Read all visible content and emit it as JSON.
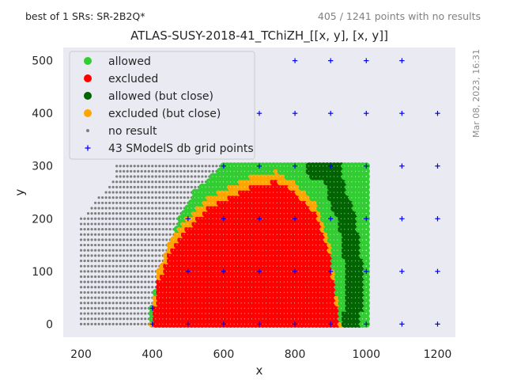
{
  "header": {
    "best_sr": "best of 1 SRs: SR-2B2Q*",
    "points_info": "405 / 1241 points with no results"
  },
  "timestamp": "Mar 08, 2023, 16:31",
  "colors": {
    "allowed": "#32cd32",
    "excluded": "#ff0000",
    "allowed_close": "#006400",
    "excluded_close": "#ffa500",
    "no_result": "#7f7f7f",
    "grid_points": "#0000ff",
    "plot_bg": "#eaeaf2"
  },
  "chart_data": {
    "type": "scatter",
    "title": "ATLAS-SUSY-2018-41_TChiZH_[[x, y], [x, y]]",
    "xlabel": "x",
    "ylabel": "y",
    "xlim": [
      150,
      1250
    ],
    "ylim": [
      -25,
      525
    ],
    "xticks": [
      200,
      400,
      600,
      800,
      1000,
      1200
    ],
    "yticks": [
      0,
      100,
      200,
      300,
      400,
      500
    ],
    "grid": false,
    "legend_position": "top-left",
    "legend": [
      {
        "label": "allowed",
        "key": "allowed",
        "marker": "circle"
      },
      {
        "label": "excluded",
        "key": "excluded",
        "marker": "circle"
      },
      {
        "label": "allowed (but close)",
        "key": "allowed_close",
        "marker": "circle"
      },
      {
        "label": "excluded (but close)",
        "key": "excluded_close",
        "marker": "circle"
      },
      {
        "label": "no result",
        "key": "no_result",
        "marker": "small-dot"
      },
      {
        "label": "43 SModelS db grid points",
        "key": "grid_points",
        "marker": "plus"
      }
    ],
    "scan_region": {
      "x_step": 10,
      "y_step": 10,
      "y_max": 300,
      "x_max": 1000,
      "no_result_lower_x_edge": [
        [
          0,
          200
        ],
        [
          200,
          200
        ],
        [
          280,
          300
        ],
        [
          300,
          300
        ]
      ],
      "result_lower_x_edge": [
        [
          0,
          400
        ],
        [
          30,
          400
        ],
        [
          60,
          410
        ],
        [
          100,
          420
        ],
        [
          150,
          450
        ],
        [
          200,
          480
        ],
        [
          250,
          520
        ],
        [
          300,
          600
        ]
      ]
    },
    "excluded_region": {
      "upper_y_left_edge": [
        [
          400,
          0
        ],
        [
          420,
          100
        ],
        [
          450,
          150
        ],
        [
          500,
          200
        ],
        [
          560,
          240
        ],
        [
          620,
          260
        ],
        [
          680,
          280
        ],
        [
          750,
          290
        ],
        [
          800,
          270
        ],
        [
          860,
          230
        ],
        [
          900,
          150
        ],
        [
          930,
          0
        ]
      ],
      "close_band_width": 18
    },
    "allowed_close_region": {
      "band": [
        [
          860,
          300
        ],
        [
          910,
          290
        ],
        [
          920,
          250
        ],
        [
          950,
          200
        ],
        [
          960,
          150
        ],
        [
          970,
          100
        ],
        [
          970,
          50
        ],
        [
          960,
          0
        ]
      ],
      "band_width": 25
    },
    "grid_points": [
      [
        400,
        0
      ],
      [
        500,
        0
      ],
      [
        600,
        0
      ],
      [
        700,
        0
      ],
      [
        800,
        0
      ],
      [
        900,
        0
      ],
      [
        1000,
        0
      ],
      [
        1100,
        0
      ],
      [
        1200,
        0
      ],
      [
        500,
        100
      ],
      [
        600,
        100
      ],
      [
        700,
        100
      ],
      [
        800,
        100
      ],
      [
        900,
        100
      ],
      [
        1000,
        100
      ],
      [
        1100,
        100
      ],
      [
        1200,
        100
      ],
      [
        500,
        200
      ],
      [
        600,
        200
      ],
      [
        700,
        200
      ],
      [
        800,
        200
      ],
      [
        900,
        200
      ],
      [
        1000,
        200
      ],
      [
        1100,
        200
      ],
      [
        1200,
        200
      ],
      [
        600,
        300
      ],
      [
        700,
        300
      ],
      [
        800,
        300
      ],
      [
        900,
        300
      ],
      [
        1000,
        300
      ],
      [
        1100,
        300
      ],
      [
        1200,
        300
      ],
      [
        700,
        400
      ],
      [
        800,
        400
      ],
      [
        900,
        400
      ],
      [
        1000,
        400
      ],
      [
        1100,
        400
      ],
      [
        1200,
        400
      ],
      [
        800,
        500
      ],
      [
        900,
        500
      ],
      [
        1000,
        500
      ],
      [
        1100,
        500
      ],
      [
        400,
        30
      ]
    ]
  }
}
